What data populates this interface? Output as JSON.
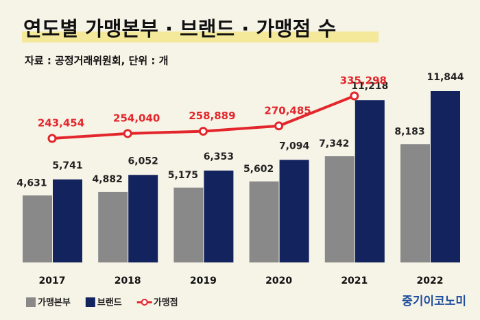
{
  "chart_data": {
    "type": "bar-line",
    "title": "연도별 가맹본부 · 브랜드 · 가맹점 수",
    "subtitle": "자료 : 공정거래위원회, 단위 : 개",
    "source": "중기이코노미",
    "categories": [
      "2017",
      "2018",
      "2019",
      "2020",
      "2021",
      "2022"
    ],
    "legend": "bottom-left",
    "series": [
      {
        "name": "가맹본부",
        "type": "bar",
        "color": "#898989",
        "values": [
          4631,
          4882,
          5175,
          5602,
          7342,
          8183
        ],
        "value_labels": [
          "4,631",
          "4,882",
          "5,175",
          "5,602",
          "7,342",
          "8,183"
        ]
      },
      {
        "name": "브랜드",
        "type": "bar",
        "color": "#13235e",
        "values": [
          5741,
          6052,
          6353,
          7094,
          11218,
          11844
        ],
        "value_labels": [
          "5,741",
          "6,052",
          "6,353",
          "7,094",
          "11,218",
          "11,844"
        ]
      },
      {
        "name": "가맹점",
        "type": "line",
        "axis": "y2",
        "color": "#e3262b",
        "values": [
          243454,
          254040,
          258889,
          270485,
          335298,
          null
        ],
        "value_labels": [
          "243,454",
          "254,040",
          "258,889",
          "270,485",
          "335,298",
          null
        ]
      }
    ]
  }
}
